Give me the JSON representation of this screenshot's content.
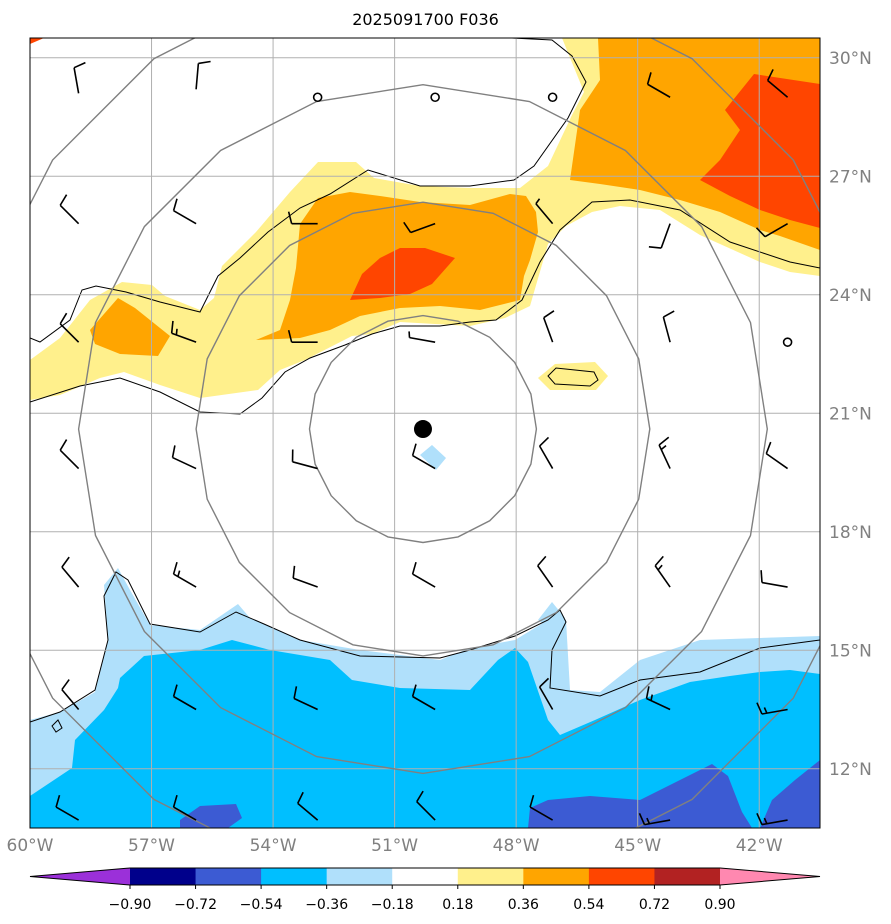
{
  "title": "2025091700 F036",
  "map": {
    "lon_range": [
      -60,
      -40.5
    ],
    "lat_range": [
      10.5,
      30.5
    ],
    "lon_ticks": [
      {
        "value": -60,
        "label": "60°W"
      },
      {
        "value": -57,
        "label": "57°W"
      },
      {
        "value": -54,
        "label": "54°W"
      },
      {
        "value": -51,
        "label": "51°W"
      },
      {
        "value": -48,
        "label": "48°W"
      },
      {
        "value": -45,
        "label": "45°W"
      },
      {
        "value": -42,
        "label": "42°W"
      }
    ],
    "lat_ticks": [
      {
        "value": 30,
        "label": "30°N"
      },
      {
        "value": 27,
        "label": "27°N"
      },
      {
        "value": 24,
        "label": "24°N"
      },
      {
        "value": 21,
        "label": "21°N"
      },
      {
        "value": 18,
        "label": "18°N"
      },
      {
        "value": 15,
        "label": "15°N"
      },
      {
        "value": 12,
        "label": "12°N"
      }
    ],
    "gridlines": true,
    "storm_center": {
      "lon": -50.3,
      "lat": 20.6
    },
    "range_ring_radii_deg": [
      2.8,
      5.6,
      8.5,
      11.3
    ],
    "colors": {
      "neg_090": "#9b30d9",
      "neg_072": "#00008b",
      "neg_054": "#3c5bd3",
      "neg_036": "#00bfff",
      "neg_018": "#b0e0fb",
      "zero": "#ffffff",
      "pos_018": "#fff08c",
      "pos_036": "#ffa500",
      "pos_054": "#ff4500",
      "pos_072": "#b22222",
      "pos_090": "#ff88b0",
      "ring": "#808080",
      "grid": "#b0b0b0",
      "barb": "#000000"
    }
  },
  "colorbar": {
    "colors": [
      "#9b30d9",
      "#00008b",
      "#3c5bd3",
      "#00bfff",
      "#b0e0fb",
      "#ffffff",
      "#fff08c",
      "#ffa500",
      "#ff4500",
      "#b22222",
      "#ff88b0"
    ],
    "ticks": [
      "−0.90",
      "−0.72",
      "−0.54",
      "−0.36",
      "−0.18",
      "0.18",
      "0.36",
      "0.54",
      "0.72",
      "0.90"
    ]
  },
  "wind_barbs": [
    {
      "lon": -58.8,
      "lat": 29.1,
      "dir": 350,
      "speed": 10
    },
    {
      "lon": -55.9,
      "lat": 29.2,
      "dir": 5,
      "speed": 10
    },
    {
      "lon": -52.9,
      "lat": 29.0,
      "calm": true
    },
    {
      "lon": -50.0,
      "lat": 29.0,
      "calm": true
    },
    {
      "lon": -47.1,
      "lat": 29.0,
      "calm": true
    },
    {
      "lon": -44.2,
      "lat": 29.0,
      "dir": 300,
      "speed": 10
    },
    {
      "lon": -41.3,
      "lat": 29.0,
      "dir": 310,
      "speed": 10
    },
    {
      "lon": -58.8,
      "lat": 25.8,
      "dir": 315,
      "speed": 10
    },
    {
      "lon": -55.9,
      "lat": 25.8,
      "dir": 300,
      "speed": 10
    },
    {
      "lon": -52.9,
      "lat": 25.8,
      "dir": 270,
      "speed": 10
    },
    {
      "lon": -50.0,
      "lat": 25.8,
      "dir": 250,
      "speed": 10
    },
    {
      "lon": -47.1,
      "lat": 25.8,
      "dir": 320,
      "speed": 5
    },
    {
      "lon": -44.2,
      "lat": 25.8,
      "dir": 200,
      "speed": 10
    },
    {
      "lon": -41.3,
      "lat": 25.8,
      "dir": 240,
      "speed": 10
    },
    {
      "lon": -58.8,
      "lat": 22.8,
      "dir": 315,
      "speed": 10
    },
    {
      "lon": -55.9,
      "lat": 22.8,
      "dir": 290,
      "speed": 15
    },
    {
      "lon": -52.9,
      "lat": 22.8,
      "dir": 270,
      "speed": 10
    },
    {
      "lon": -50.0,
      "lat": 22.8,
      "dir": 280,
      "speed": 5
    },
    {
      "lon": -47.1,
      "lat": 22.8,
      "dir": 340,
      "speed": 10
    },
    {
      "lon": -44.2,
      "lat": 22.8,
      "dir": 345,
      "speed": 10
    },
    {
      "lon": -41.3,
      "lat": 22.8,
      "calm": true
    },
    {
      "lon": -58.8,
      "lat": 19.6,
      "dir": 315,
      "speed": 10
    },
    {
      "lon": -55.9,
      "lat": 19.6,
      "dir": 295,
      "speed": 10
    },
    {
      "lon": -52.9,
      "lat": 19.6,
      "dir": 285,
      "speed": 10
    },
    {
      "lon": -50.0,
      "lat": 19.6,
      "dir": 300,
      "speed": 10
    },
    {
      "lon": -47.1,
      "lat": 19.6,
      "dir": 330,
      "speed": 10
    },
    {
      "lon": -44.2,
      "lat": 19.6,
      "dir": 335,
      "speed": 15
    },
    {
      "lon": -41.3,
      "lat": 19.6,
      "dir": 305,
      "speed": 10
    },
    {
      "lon": -58.8,
      "lat": 16.6,
      "dir": 320,
      "speed": 10
    },
    {
      "lon": -55.9,
      "lat": 16.6,
      "dir": 300,
      "speed": 15
    },
    {
      "lon": -52.9,
      "lat": 16.6,
      "dir": 290,
      "speed": 10
    },
    {
      "lon": -50.0,
      "lat": 16.6,
      "dir": 300,
      "speed": 10
    },
    {
      "lon": -47.1,
      "lat": 16.6,
      "dir": 325,
      "speed": 10
    },
    {
      "lon": -44.2,
      "lat": 16.6,
      "dir": 325,
      "speed": 15
    },
    {
      "lon": -41.3,
      "lat": 16.6,
      "dir": 280,
      "speed": 10
    },
    {
      "lon": -58.8,
      "lat": 13.5,
      "dir": 320,
      "speed": 10
    },
    {
      "lon": -55.9,
      "lat": 13.5,
      "dir": 300,
      "speed": 10
    },
    {
      "lon": -52.9,
      "lat": 13.5,
      "dir": 295,
      "speed": 10
    },
    {
      "lon": -50.0,
      "lat": 13.5,
      "dir": 300,
      "speed": 10
    },
    {
      "lon": -47.1,
      "lat": 13.5,
      "dir": 330,
      "speed": 10
    },
    {
      "lon": -44.2,
      "lat": 13.5,
      "dir": 295,
      "speed": 15
    },
    {
      "lon": -41.3,
      "lat": 13.5,
      "dir": 260,
      "speed": 15
    },
    {
      "lon": -58.8,
      "lat": 10.7,
      "dir": 300,
      "speed": 10
    },
    {
      "lon": -55.9,
      "lat": 10.7,
      "dir": 300,
      "speed": 10
    },
    {
      "lon": -52.9,
      "lat": 10.7,
      "dir": 310,
      "speed": 10
    },
    {
      "lon": -50.0,
      "lat": 10.7,
      "dir": 315,
      "speed": 10
    },
    {
      "lon": -47.1,
      "lat": 10.7,
      "dir": 300,
      "speed": 10
    },
    {
      "lon": -44.2,
      "lat": 10.7,
      "dir": 260,
      "speed": 15
    },
    {
      "lon": -41.3,
      "lat": 10.7,
      "dir": 260,
      "speed": 15
    }
  ]
}
